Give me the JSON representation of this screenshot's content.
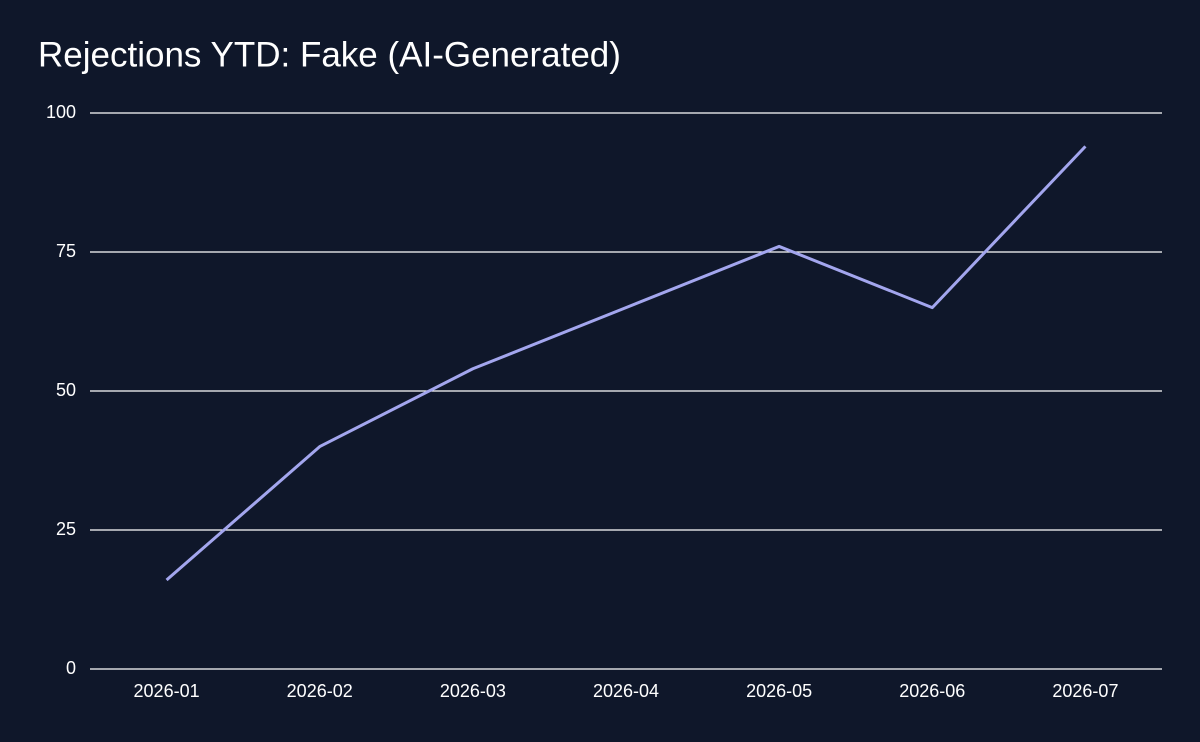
{
  "chart_data": {
    "type": "line",
    "title": "Rejections YTD: Fake (AI-Generated)",
    "categories": [
      "2026-01",
      "2026-02",
      "2026-03",
      "2026-04",
      "2026-05",
      "2026-06",
      "2026-07"
    ],
    "values": [
      16,
      40,
      54,
      65,
      76,
      65,
      94
    ],
    "color": "#a3a6ee",
    "ylim": [
      0,
      100
    ],
    "yticks": [
      0,
      25,
      50,
      75,
      100
    ],
    "grid": true
  }
}
